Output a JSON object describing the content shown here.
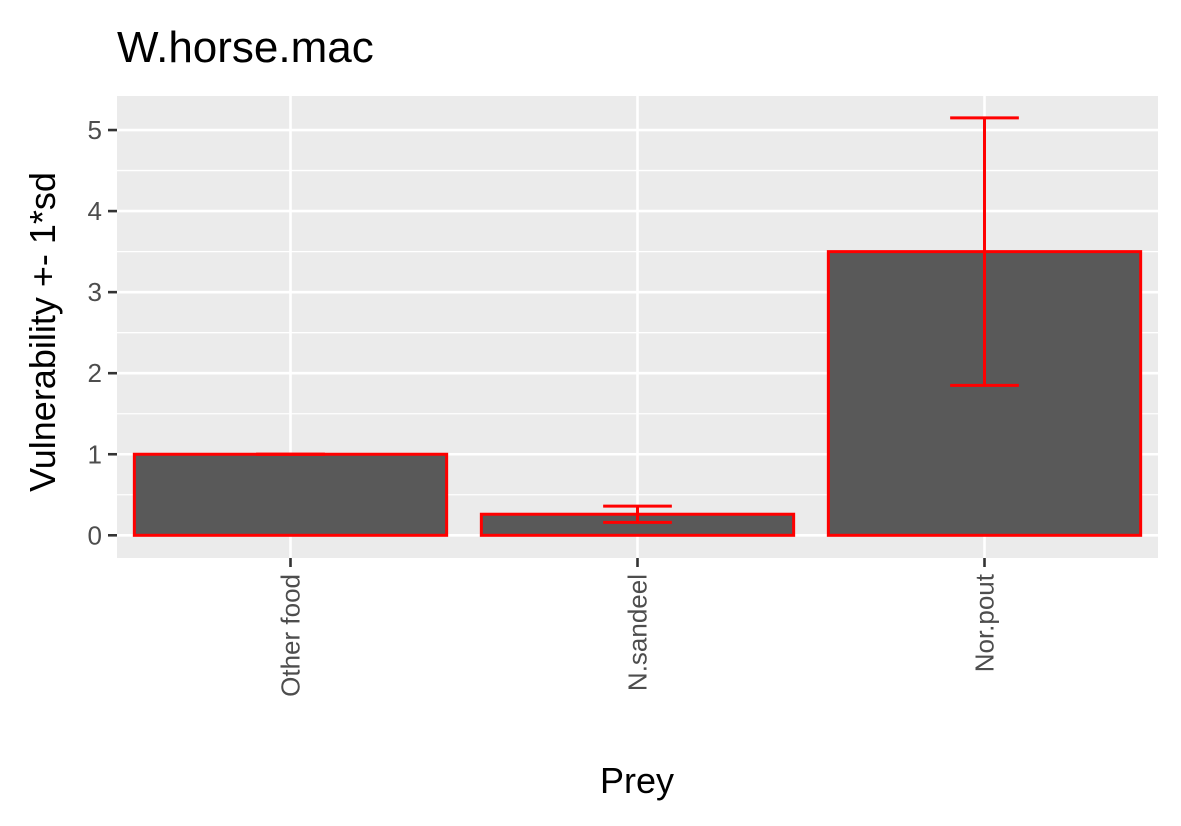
{
  "chart_data": {
    "type": "bar",
    "title": "W.horse.mac",
    "xlabel": "Prey",
    "ylabel": "Vulnerability +- 1*sd",
    "categories": [
      "Other food",
      "N.sandeel",
      "Nor.pout"
    ],
    "values": [
      1.0,
      0.26,
      3.5
    ],
    "error_low": [
      1.0,
      0.16,
      1.85
    ],
    "error_high": [
      1.0,
      0.36,
      5.15
    ],
    "ylim": [
      -0.28,
      5.42
    ],
    "yticks": [
      0,
      1,
      2,
      3,
      4,
      5
    ],
    "grid": true,
    "colors": {
      "panel": "#ebebeb",
      "grid": "#ffffff",
      "bar_fill": "#595959",
      "bar_outline": "#ff0000",
      "error_bar": "#ff0000",
      "tick": "#333333"
    }
  }
}
